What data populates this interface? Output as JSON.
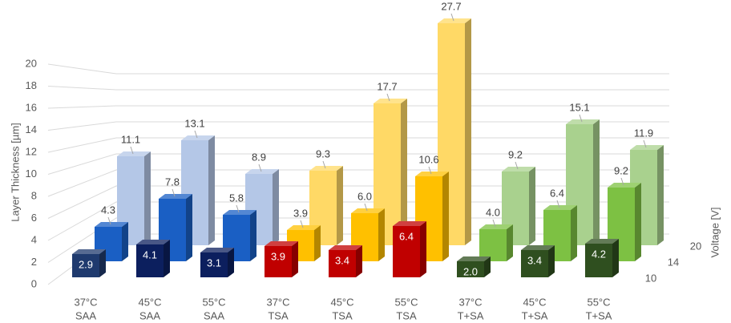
{
  "chart_data": {
    "type": "bar3d",
    "y_label": "Layer Thickness [µm]",
    "z_label": "Voltage [V]",
    "categories": [
      [
        "37°C",
        "SAA"
      ],
      [
        "45°C",
        "SAA"
      ],
      [
        "55°C",
        "SAA"
      ],
      [
        "37°C",
        "TSA"
      ],
      [
        "45°C",
        "TSA"
      ],
      [
        "55°C",
        "TSA"
      ],
      [
        "37°C",
        "T+SA"
      ],
      [
        "45°C",
        "T+SA"
      ],
      [
        "55°C",
        "T+SA"
      ]
    ],
    "series": [
      {
        "name": "10",
        "colors": [
          "#1f3a6e",
          "#0c1f5e",
          "#0c1f5e",
          "#c00000",
          "#c00000",
          "#c00000",
          "#2f4f1f",
          "#2f4f1f",
          "#2f4f1f"
        ],
        "values": [
          2.9,
          4.1,
          3.1,
          3.9,
          3.4,
          6.4,
          2.0,
          3.4,
          4.2
        ],
        "value_labels": [
          "2.9",
          "4.1",
          "3.1",
          "3.9",
          "3.4",
          "6.4",
          "2.0",
          "3.4",
          "4.2"
        ]
      },
      {
        "name": "14",
        "colors": [
          "#1a5fc4",
          "#1a5fc4",
          "#1a5fc4",
          "#ffc000",
          "#ffc000",
          "#ffc000",
          "#7dc143",
          "#7dc143",
          "#7dc143"
        ],
        "values": [
          4.3,
          7.8,
          5.8,
          3.9,
          6.0,
          10.6,
          4.0,
          6.4,
          9.2
        ],
        "value_labels": [
          "4.3",
          "7.8",
          "5.8",
          "3.9",
          "6.0",
          "10.6",
          "4.0",
          "6.4",
          "9.2"
        ]
      },
      {
        "name": "20",
        "colors": [
          "#b4c7e7",
          "#b4c7e7",
          "#b4c7e7",
          "#ffd966",
          "#ffd966",
          "#ffd966",
          "#a9d18e",
          "#a9d18e",
          "#a9d18e"
        ],
        "values": [
          11.1,
          13.1,
          8.9,
          9.3,
          17.7,
          27.7,
          9.2,
          15.1,
          11.9
        ],
        "value_labels": [
          "11.1",
          "13.1",
          "8.9",
          "9.3",
          "17.7",
          "27.7",
          "9.2",
          "15.1",
          "11.9"
        ]
      }
    ],
    "ylim": [
      0,
      20
    ],
    "yticks": [
      0,
      2,
      4,
      6,
      8,
      10,
      12,
      14,
      16,
      18,
      20
    ],
    "grid": true
  }
}
